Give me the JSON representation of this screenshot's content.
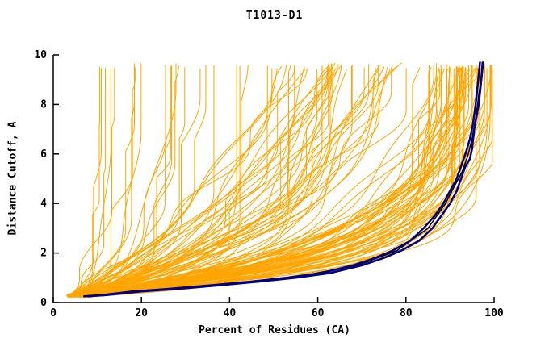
{
  "chart_data": {
    "type": "line",
    "title": "T1013-D1",
    "xlabel": "Percent of Residues (CA)",
    "ylabel": "Distance Cutoff, A",
    "xlim": [
      0,
      100
    ],
    "ylim": [
      0,
      10
    ],
    "xticks": [
      0,
      20,
      40,
      60,
      80,
      100
    ],
    "yticks": [
      0,
      2,
      4,
      6,
      8,
      10
    ],
    "grid": false,
    "legend": "none",
    "colors": {
      "ensemble": "#FFA500",
      "highlight": "#000080",
      "outline": "#000000",
      "axis": "#000000",
      "background": "#FFFFFF"
    },
    "highlight_series": [
      {
        "name": "highlighted-model-outline",
        "color": "#000000",
        "width": 1.5,
        "points": [
          [
            7.5,
            0.25
          ],
          [
            19,
            0.45
          ],
          [
            37,
            0.7
          ],
          [
            54,
            1.0
          ],
          [
            69,
            1.5
          ],
          [
            78,
            2.1
          ],
          [
            85,
            3.0
          ],
          [
            89,
            4.0
          ],
          [
            91,
            4.7
          ],
          [
            92.8,
            5.3
          ],
          [
            94,
            5.9
          ],
          [
            95,
            6.6
          ],
          [
            95.8,
            7.4
          ],
          [
            96.4,
            8.2
          ],
          [
            97,
            9.0
          ],
          [
            97.3,
            9.7
          ]
        ]
      },
      {
        "name": "highlighted-model-2",
        "color": "#000080",
        "width": 2.5,
        "points": [
          [
            7,
            0.25
          ],
          [
            11,
            0.3
          ],
          [
            18,
            0.45
          ],
          [
            26,
            0.55
          ],
          [
            36,
            0.7
          ],
          [
            45,
            0.85
          ],
          [
            53,
            1.0
          ],
          [
            61,
            1.2
          ],
          [
            68,
            1.5
          ],
          [
            73,
            1.8
          ],
          [
            77,
            2.1
          ],
          [
            81,
            2.5
          ],
          [
            84,
            3.0
          ],
          [
            86.5,
            3.5
          ],
          [
            88.5,
            4.0
          ],
          [
            90,
            4.5
          ],
          [
            91.5,
            5.0
          ],
          [
            92.5,
            5.5
          ],
          [
            93.5,
            6.0
          ],
          [
            94.5,
            6.6
          ],
          [
            95.2,
            7.2
          ],
          [
            95.8,
            8.0
          ],
          [
            96.3,
            8.8
          ],
          [
            96.8,
            9.7
          ]
        ]
      },
      {
        "name": "highlighted-model-1",
        "color": "#000080",
        "width": 2.5,
        "points": [
          [
            8,
            0.25
          ],
          [
            12,
            0.3
          ],
          [
            20,
            0.45
          ],
          [
            28,
            0.55
          ],
          [
            38,
            0.7
          ],
          [
            47,
            0.85
          ],
          [
            55,
            1.0
          ],
          [
            63,
            1.2
          ],
          [
            70,
            1.5
          ],
          [
            75,
            1.8
          ],
          [
            79,
            2.1
          ],
          [
            83,
            2.5
          ],
          [
            86,
            3.0
          ],
          [
            88,
            3.5
          ],
          [
            90,
            4.0
          ],
          [
            91.5,
            4.5
          ],
          [
            92.5,
            5.0
          ],
          [
            93.5,
            5.5
          ],
          [
            94.5,
            5.8
          ],
          [
            95,
            6.2
          ],
          [
            95.5,
            7.0
          ],
          [
            96,
            7.5
          ],
          [
            96.5,
            8.0
          ],
          [
            97,
            8.8
          ],
          [
            97.5,
            9.7
          ]
        ]
      }
    ],
    "ensemble": {
      "seed": 7,
      "color": "#FFA500",
      "width": 1,
      "d_start": 0.2,
      "d_end": 9.7,
      "x_start_range": [
        3,
        8
      ],
      "groups": [
        {
          "count": 55,
          "pmax": [
            86,
            99.5
          ],
          "tau": [
            1.0,
            2.6
          ]
        },
        {
          "count": 22,
          "pmax": [
            60,
            90
          ],
          "tau": [
            1.5,
            4.5
          ]
        },
        {
          "count": 18,
          "pmax": [
            25,
            65
          ],
          "tau": [
            0.8,
            3.0
          ]
        },
        {
          "count": 15,
          "pmax": [
            8,
            28
          ],
          "tau": [
            0.3,
            1.8
          ]
        },
        {
          "count": 15,
          "pmax": [
            65,
            100
          ],
          "tau": [
            4.5,
            9.0
          ]
        }
      ]
    }
  }
}
